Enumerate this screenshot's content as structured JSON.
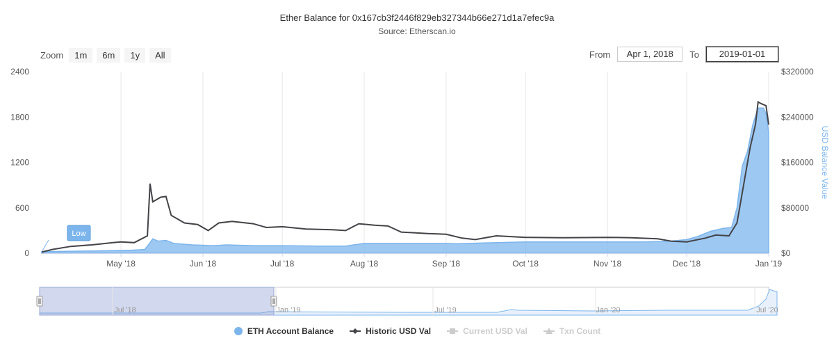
{
  "header": {
    "title": "Ether Balance for 0x167cb3f2446f829eb327344b66e271d1a7efec9a",
    "subtitle": "Source: Etherscan.io"
  },
  "zoom": {
    "label": "Zoom",
    "buttons": [
      "1m",
      "6m",
      "1y",
      "All"
    ]
  },
  "range": {
    "from_label": "From",
    "from_value": "Apr 1, 2018",
    "to_label": "To",
    "to_value": "2019-01-01"
  },
  "tooltip_flag": "Low",
  "legend": [
    {
      "label": "ETH Account Balance",
      "symbol": "circle",
      "color": "#7cb5ec",
      "active": true
    },
    {
      "label": "Historic USD Val",
      "symbol": "line-diamond",
      "color": "#434348",
      "active": true
    },
    {
      "label": "Current USD Val",
      "symbol": "square",
      "color": "#cccccc",
      "active": false
    },
    {
      "label": "Txn Count",
      "symbol": "triangle",
      "color": "#cccccc",
      "active": false
    }
  ],
  "navigator": {
    "labels": [
      "Jul '18",
      "Jan '19",
      "Jul '19",
      "Jan '20",
      "Jul '20"
    ]
  },
  "chart_data": {
    "type": "area",
    "x_range": [
      "2018-04-01",
      "2019-01-01"
    ],
    "x_tick_labels": [
      "May '18",
      "Jun '18",
      "Jul '18",
      "Aug '18",
      "Sep '18",
      "Oct '18",
      "Nov '18",
      "Dec '18",
      "Jan '19"
    ],
    "y_left": {
      "ticks": [
        "0",
        "600",
        "1200",
        "1800",
        "2400"
      ],
      "range": [
        0,
        2400
      ]
    },
    "y_right": {
      "label": "USD Balance Value",
      "ticks": [
        "$0",
        "$80000",
        "$160000",
        "$240000",
        "$320000"
      ],
      "range": [
        0,
        320000
      ]
    },
    "grid": "vertical",
    "series": [
      {
        "name": "ETH Account Balance",
        "axis": "left",
        "color": "#7cb5ec",
        "points": [
          [
            "2018-04-01",
            20
          ],
          [
            "2018-04-10",
            25
          ],
          [
            "2018-04-20",
            30
          ],
          [
            "2018-04-28",
            35
          ],
          [
            "2018-05-05",
            40
          ],
          [
            "2018-05-10",
            50
          ],
          [
            "2018-05-12",
            140
          ],
          [
            "2018-05-13",
            190
          ],
          [
            "2018-05-15",
            160
          ],
          [
            "2018-05-18",
            170
          ],
          [
            "2018-05-21",
            130
          ],
          [
            "2018-05-28",
            110
          ],
          [
            "2018-06-05",
            100
          ],
          [
            "2018-06-10",
            110
          ],
          [
            "2018-06-20",
            100
          ],
          [
            "2018-07-01",
            100
          ],
          [
            "2018-07-15",
            95
          ],
          [
            "2018-07-25",
            95
          ],
          [
            "2018-08-01",
            130
          ],
          [
            "2018-08-15",
            130
          ],
          [
            "2018-09-01",
            130
          ],
          [
            "2018-09-05",
            125
          ],
          [
            "2018-09-15",
            135
          ],
          [
            "2018-10-01",
            150
          ],
          [
            "2018-10-15",
            150
          ],
          [
            "2018-11-01",
            150
          ],
          [
            "2018-11-15",
            150
          ],
          [
            "2018-11-25",
            160
          ],
          [
            "2018-12-01",
            180
          ],
          [
            "2018-12-05",
            220
          ],
          [
            "2018-12-10",
            290
          ],
          [
            "2018-12-15",
            330
          ],
          [
            "2018-12-18",
            340
          ],
          [
            "2018-12-20",
            600
          ],
          [
            "2018-12-22",
            1150
          ],
          [
            "2018-12-24",
            1350
          ],
          [
            "2018-12-26",
            1700
          ],
          [
            "2018-12-28",
            1920
          ],
          [
            "2018-12-30",
            1920
          ],
          [
            "2018-12-31",
            1850
          ],
          [
            "2019-01-01",
            1600
          ]
        ]
      },
      {
        "name": "Historic USD Val",
        "axis": "left",
        "color": "#434348",
        "points": [
          [
            "2018-04-01",
            15
          ],
          [
            "2018-04-05",
            50
          ],
          [
            "2018-04-12",
            90
          ],
          [
            "2018-04-20",
            110
          ],
          [
            "2018-04-28",
            140
          ],
          [
            "2018-05-01",
            150
          ],
          [
            "2018-05-06",
            140
          ],
          [
            "2018-05-11",
            230
          ],
          [
            "2018-05-12",
            920
          ],
          [
            "2018-05-13",
            680
          ],
          [
            "2018-05-16",
            740
          ],
          [
            "2018-05-18",
            750
          ],
          [
            "2018-05-20",
            500
          ],
          [
            "2018-05-25",
            400
          ],
          [
            "2018-05-30",
            380
          ],
          [
            "2018-06-03",
            300
          ],
          [
            "2018-06-07",
            400
          ],
          [
            "2018-06-12",
            420
          ],
          [
            "2018-06-20",
            390
          ],
          [
            "2018-06-25",
            340
          ],
          [
            "2018-07-01",
            350
          ],
          [
            "2018-07-10",
            320
          ],
          [
            "2018-07-20",
            310
          ],
          [
            "2018-07-25",
            300
          ],
          [
            "2018-07-30",
            390
          ],
          [
            "2018-08-05",
            370
          ],
          [
            "2018-08-10",
            360
          ],
          [
            "2018-08-15",
            280
          ],
          [
            "2018-08-20",
            270
          ],
          [
            "2018-08-25",
            260
          ],
          [
            "2018-09-01",
            250
          ],
          [
            "2018-09-07",
            200
          ],
          [
            "2018-09-12",
            180
          ],
          [
            "2018-09-20",
            230
          ],
          [
            "2018-10-01",
            210
          ],
          [
            "2018-10-15",
            205
          ],
          [
            "2018-11-01",
            210
          ],
          [
            "2018-11-10",
            205
          ],
          [
            "2018-11-20",
            190
          ],
          [
            "2018-11-25",
            160
          ],
          [
            "2018-12-01",
            150
          ],
          [
            "2018-12-08",
            200
          ],
          [
            "2018-12-12",
            240
          ],
          [
            "2018-12-17",
            230
          ],
          [
            "2018-12-20",
            400
          ],
          [
            "2018-12-23",
            1000
          ],
          [
            "2018-12-25",
            1400
          ],
          [
            "2018-12-27",
            1700
          ],
          [
            "2018-12-28",
            2000
          ],
          [
            "2018-12-29",
            1980
          ],
          [
            "2018-12-31",
            1950
          ],
          [
            "2019-01-01",
            1700
          ]
        ]
      }
    ]
  }
}
